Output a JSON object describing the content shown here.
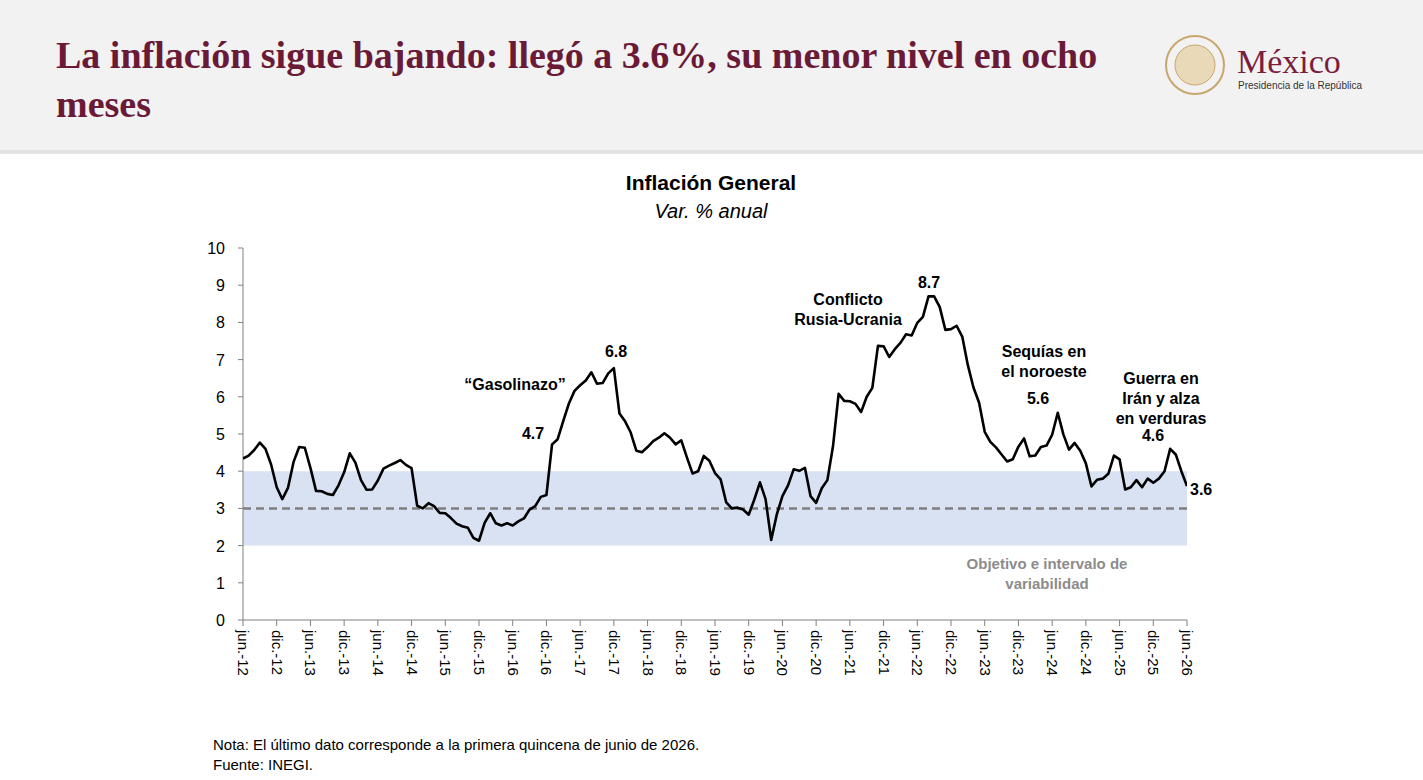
{
  "page": {
    "title": "La inflación sigue bajando: llegó a 3.6%, su menor nivel en ocho meses",
    "logo_name": "México",
    "logo_subtitle": "Presidencia de la República",
    "note": "Nota: El último dato corresponde a la primera quincena de junio de 2026.",
    "source": "Fuente: INEGI."
  },
  "chart_data": {
    "type": "line",
    "title": "Inflación General",
    "subtitle": "Var. % anual",
    "categories": [
      "jun.-12",
      null,
      null,
      null,
      null,
      null,
      "dic.-12",
      null,
      null,
      null,
      null,
      null,
      "jun.-13",
      null,
      null,
      null,
      null,
      null,
      "dic.-13",
      null,
      null,
      null,
      null,
      null,
      "jun.-14",
      null,
      null,
      null,
      null,
      null,
      "dic.-14",
      null,
      null,
      null,
      null,
      null,
      "jun.-15",
      null,
      null,
      null,
      null,
      null,
      "dic.-15",
      null,
      null,
      null,
      null,
      null,
      "jun.-16",
      null,
      null,
      null,
      null,
      null,
      "dic.-16",
      null,
      null,
      null,
      null,
      null,
      "jun.-17",
      null,
      null,
      null,
      null,
      null,
      "dic.-17",
      null,
      null,
      null,
      null,
      null,
      "jun.-18",
      null,
      null,
      null,
      null,
      null,
      "dic.-18",
      null,
      null,
      null,
      null,
      null,
      "jun.-19",
      null,
      null,
      null,
      null,
      null,
      "dic.-19",
      null,
      null,
      null,
      null,
      null,
      "jun.-20",
      null,
      null,
      null,
      null,
      null,
      "dic.-20",
      null,
      null,
      null,
      null,
      null,
      "jun.-21",
      null,
      null,
      null,
      null,
      null,
      "dic.-21",
      null,
      null,
      null,
      null,
      null,
      "jun.-22",
      null,
      null,
      null,
      null,
      null,
      "dic.-22",
      null,
      null,
      null,
      null,
      null,
      "jun.-23",
      null,
      null,
      null,
      null,
      null,
      "dic.-23",
      null,
      null,
      null,
      null,
      null,
      "jun.-24",
      null,
      null,
      null,
      null,
      null,
      "dic.-24",
      null,
      null,
      null,
      null,
      null,
      "jun.-25",
      null,
      null,
      null,
      null,
      null,
      "dic.-25",
      null,
      null,
      null,
      null,
      null,
      "jun.-26"
    ],
    "values": [
      4.34,
      4.42,
      4.57,
      4.77,
      4.6,
      4.18,
      3.57,
      3.25,
      3.55,
      4.25,
      4.65,
      4.63,
      4.09,
      3.47,
      3.46,
      3.39,
      3.36,
      3.62,
      3.97,
      4.48,
      4.23,
      3.76,
      3.5,
      3.51,
      3.75,
      4.07,
      4.15,
      4.22,
      4.3,
      4.17,
      4.08,
      3.07,
      3.0,
      3.14,
      3.06,
      2.88,
      2.87,
      2.74,
      2.59,
      2.52,
      2.48,
      2.21,
      2.13,
      2.61,
      2.87,
      2.6,
      2.54,
      2.6,
      2.54,
      2.65,
      2.73,
      2.97,
      3.06,
      3.31,
      3.36,
      4.72,
      4.86,
      5.35,
      5.82,
      6.16,
      6.31,
      6.44,
      6.66,
      6.35,
      6.37,
      6.63,
      6.77,
      5.55,
      5.34,
      5.04,
      4.55,
      4.51,
      4.65,
      4.81,
      4.9,
      5.02,
      4.9,
      4.72,
      4.83,
      4.37,
      3.94,
      4.0,
      4.41,
      4.28,
      3.95,
      3.78,
      3.16,
      3.0,
      3.02,
      2.97,
      2.83,
      3.24,
      3.7,
      3.25,
      2.15,
      2.84,
      3.33,
      3.62,
      4.05,
      4.01,
      4.09,
      3.33,
      3.15,
      3.54,
      3.76,
      4.67,
      6.08,
      5.89,
      5.88,
      5.81,
      5.59,
      6.0,
      6.24,
      7.37,
      7.36,
      7.07,
      7.28,
      7.45,
      7.68,
      7.65,
      7.99,
      8.15,
      8.7,
      8.7,
      8.41,
      7.8,
      7.82,
      7.91,
      7.62,
      6.85,
      6.25,
      5.84,
      5.06,
      4.79,
      4.64,
      4.45,
      4.26,
      4.32,
      4.66,
      4.88,
      4.4,
      4.42,
      4.65,
      4.69,
      4.98,
      5.57,
      4.99,
      4.58,
      4.76,
      4.55,
      4.21,
      3.59,
      3.77,
      3.8,
      3.93,
      4.42,
      4.32,
      3.51,
      3.57,
      3.76,
      3.57,
      3.8,
      3.69,
      3.8,
      4.0,
      4.6,
      4.45,
      4.0,
      3.6
    ],
    "color": "#000000",
    "ylim": [
      0,
      10
    ],
    "yticks": [
      0,
      1,
      2,
      3,
      4,
      5,
      6,
      7,
      8,
      9,
      10
    ],
    "grid": false,
    "target": {
      "value": 3,
      "low": 2,
      "high": 4,
      "label": "Objetivo e intervalo de variabilidad"
    },
    "annotations": [
      {
        "text": "“Gasolinazo”"
      },
      {
        "value": 4.7
      },
      {
        "value": 6.8
      },
      {
        "text": "Conflicto Rusia-Ucrania"
      },
      {
        "value": 8.7
      },
      {
        "text": "Sequías en el noroeste"
      },
      {
        "value": 5.6
      },
      {
        "text": "Guerra en Irán y alza en verduras"
      },
      {
        "value": 4.6
      },
      {
        "value": 3.6
      }
    ]
  }
}
